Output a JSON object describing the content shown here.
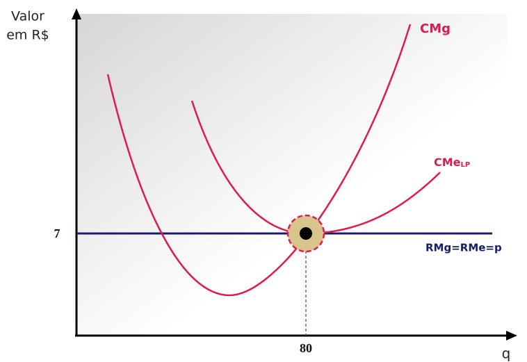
{
  "axes": {
    "y_label": [
      "Valor",
      "em R$"
    ],
    "x_label": "q"
  },
  "ticks": {
    "y": 7,
    "x": 80
  },
  "curves": {
    "cmg": "CMg",
    "cme": {
      "name": "CMe",
      "subscript": "LP"
    },
    "revenue": "RMg=RMe=p"
  }
}
